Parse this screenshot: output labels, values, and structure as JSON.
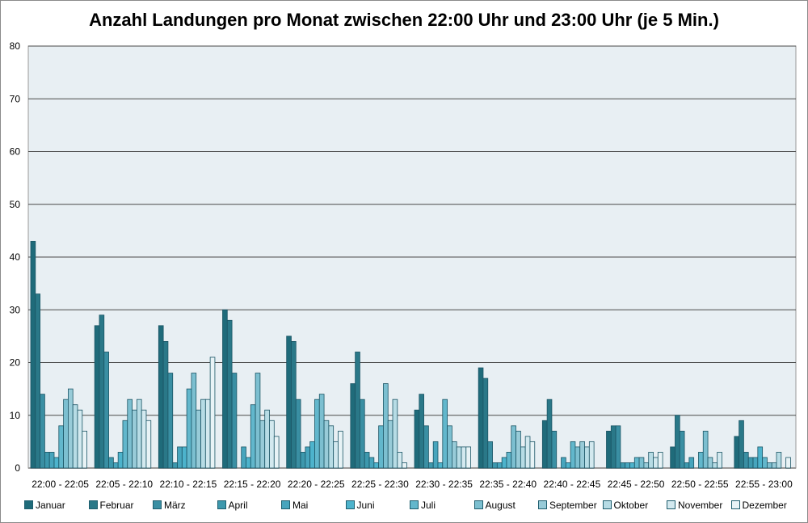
{
  "chart_data": {
    "type": "bar",
    "title": "Anzahl Landungen pro Monat zwischen 22:00 Uhr und 23:00 Uhr (je 5 Min.)",
    "xlabel": "",
    "ylabel": "",
    "ylim": [
      0,
      80
    ],
    "yticks": [
      0,
      10,
      20,
      30,
      40,
      50,
      60,
      70,
      80
    ],
    "grid": true,
    "legend_position": "bottom",
    "categories": [
      "22:00 - 22:05",
      "22:05 - 22:10",
      "22:10 - 22:15",
      "22:15 - 22:20",
      "22:20 - 22:25",
      "22:25 - 22:30",
      "22:30 - 22:35",
      "22:35 - 22:40",
      "22:40 - 22:45",
      "22:45 - 22:50",
      "22:50 - 22:55",
      "22:55 - 23:00"
    ],
    "series": [
      {
        "name": "Januar",
        "color": "#1f6b7a",
        "values": [
          43,
          27,
          27,
          30,
          25,
          16,
          11,
          19,
          9,
          7,
          4,
          6
        ]
      },
      {
        "name": "Februar",
        "color": "#2a7888",
        "values": [
          33,
          29,
          24,
          28,
          24,
          22,
          14,
          17,
          13,
          8,
          10,
          9
        ]
      },
      {
        "name": "März",
        "color": "#3a8fa3",
        "values": [
          14,
          22,
          18,
          18,
          13,
          13,
          8,
          5,
          7,
          8,
          7,
          3
        ]
      },
      {
        "name": "April",
        "color": "#3d98ad",
        "values": [
          3,
          2,
          1,
          0,
          3,
          3,
          1,
          1,
          0,
          1,
          1,
          2
        ]
      },
      {
        "name": "Mai",
        "color": "#47a5bd",
        "values": [
          3,
          1,
          4,
          4,
          4,
          2,
          5,
          1,
          2,
          1,
          2,
          2
        ]
      },
      {
        "name": "Juni",
        "color": "#4db3cc",
        "values": [
          2,
          3,
          4,
          2,
          5,
          1,
          1,
          2,
          1,
          1,
          0,
          4
        ]
      },
      {
        "name": "Juli",
        "color": "#62b7cc",
        "values": [
          8,
          9,
          15,
          12,
          13,
          8,
          13,
          3,
          5,
          2,
          3,
          2
        ]
      },
      {
        "name": "August",
        "color": "#7cbfd0",
        "values": [
          13,
          13,
          18,
          18,
          14,
          16,
          8,
          8,
          4,
          2,
          7,
          1
        ]
      },
      {
        "name": "September",
        "color": "#98cbd8",
        "values": [
          15,
          11,
          11,
          9,
          9,
          9,
          5,
          7,
          5,
          1,
          2,
          1
        ]
      },
      {
        "name": "Oktober",
        "color": "#b7dce5",
        "values": [
          12,
          13,
          13,
          11,
          8,
          13,
          4,
          4,
          4,
          3,
          1,
          3
        ]
      },
      {
        "name": "November",
        "color": "#d3e9ef",
        "values": [
          11,
          11,
          13,
          9,
          5,
          3,
          4,
          6,
          5,
          2,
          3,
          0
        ]
      },
      {
        "name": "Dezember",
        "color": "#e8f3f6",
        "values": [
          7,
          9,
          21,
          6,
          7,
          1,
          4,
          5,
          0,
          3,
          0,
          2
        ]
      }
    ]
  },
  "colors": {
    "plot_bg": "#e8eff3",
    "grid": "#4a4a4a",
    "bar_stroke": "#1b5565"
  }
}
